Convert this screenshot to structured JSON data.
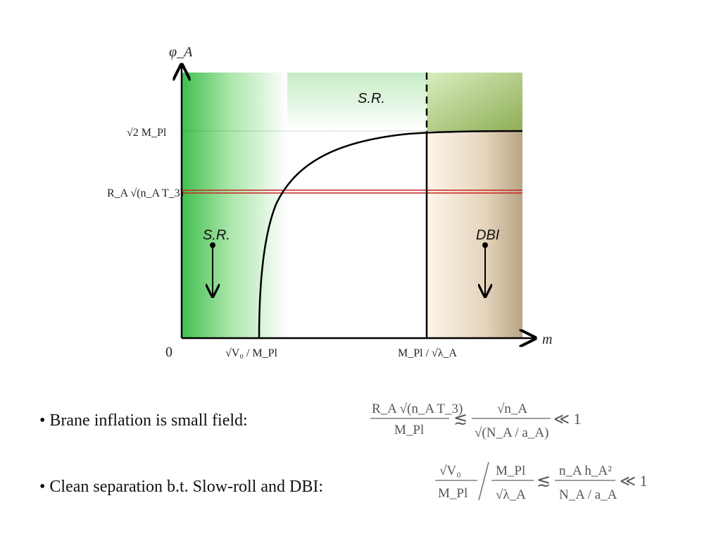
{
  "diagram": {
    "y_axis_label": "φ_A",
    "x_axis_label": "m",
    "origin_label": "0",
    "y_ticks": {
      "upper": "√2 M_Pl",
      "lower": "R_A √(n_A T_3)"
    },
    "x_ticks": {
      "left": "√V₀ / M_Pl",
      "right": "M_Pl / √λ_A"
    },
    "region_labels": {
      "top": "S.R.",
      "left": "S.R.",
      "right": "DBI"
    },
    "colors": {
      "left_region": "#4fc25a",
      "right_region": "#b8a585",
      "top_right_region": "#8aa84a",
      "horizontal_line": "#cc2222",
      "curve": "#000000"
    }
  },
  "bullets": [
    {
      "text": "• Brane inflation is small field:"
    },
    {
      "text": "• Clean separation b.t. Slow-roll and DBI:"
    }
  ],
  "formulas": {
    "f1": {
      "num": "R_A √(n_A T_3)",
      "den": "M_Pl",
      "rel": "≲",
      "num2": "√n_A",
      "den2": "√(N_A / a_A)",
      "end": "≪ 1"
    },
    "f2": {
      "num": "√V₀",
      "den": "M_Pl",
      "num2": "M_Pl",
      "den2": "√λ_A",
      "rel": "≲",
      "num3": "n_A h_A²",
      "den3": "N_A / a_A",
      "end": "≪ 1"
    }
  }
}
